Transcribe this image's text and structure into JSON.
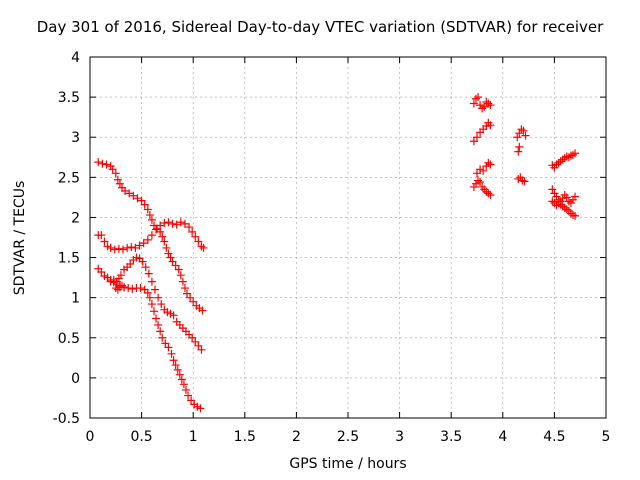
{
  "chart_data": {
    "type": "scatter",
    "title": "Day 301 of 2016, Sidereal Day-to-day VTEC variation (SDTVAR) for receiver",
    "xlabel": "GPS time / hours",
    "ylabel": "SDTVAR / TECUs",
    "xlim": [
      0,
      5
    ],
    "ylim": [
      -0.5,
      4
    ],
    "xticks": [
      "0",
      "0.5",
      "1",
      "1.5",
      "2",
      "2.5",
      "3",
      "3.5",
      "4",
      "4.5",
      "5"
    ],
    "yticks": [
      "-0.5",
      "0",
      "0.5",
      "1",
      "1.5",
      "2",
      "2.5",
      "3",
      "3.5",
      "4"
    ],
    "grid": true,
    "marker": "+",
    "color": "#ff0000",
    "series": [
      {
        "points": [
          [
            0.08,
            2.69
          ],
          [
            0.12,
            2.67
          ],
          [
            0.16,
            2.66
          ],
          [
            0.2,
            2.64
          ],
          [
            0.22,
            2.6
          ],
          [
            0.25,
            2.55
          ],
          [
            0.27,
            2.47
          ],
          [
            0.29,
            2.42
          ],
          [
            0.31,
            2.37
          ],
          [
            0.34,
            2.33
          ],
          [
            0.38,
            2.3
          ],
          [
            0.42,
            2.27
          ],
          [
            0.46,
            2.24
          ],
          [
            0.5,
            2.21
          ],
          [
            0.53,
            2.16
          ],
          [
            0.56,
            2.1
          ],
          [
            0.58,
            2.03
          ],
          [
            0.6,
            1.97
          ],
          [
            0.62,
            1.9
          ],
          [
            0.65,
            1.86
          ],
          [
            0.68,
            1.82
          ],
          [
            0.7,
            1.76
          ],
          [
            0.72,
            1.7
          ],
          [
            0.74,
            1.62
          ],
          [
            0.76,
            1.55
          ],
          [
            0.78,
            1.5
          ],
          [
            0.8,
            1.45
          ],
          [
            0.83,
            1.4
          ],
          [
            0.86,
            1.35
          ],
          [
            0.88,
            1.28
          ],
          [
            0.9,
            1.2
          ],
          [
            0.92,
            1.12
          ],
          [
            0.94,
            1.05
          ],
          [
            0.97,
            1.0
          ],
          [
            1.0,
            0.95
          ],
          [
            1.03,
            0.9
          ],
          [
            1.06,
            0.87
          ],
          [
            1.09,
            0.84
          ],
          [
            0.08,
            1.78
          ],
          [
            0.11,
            1.78
          ],
          [
            0.14,
            1.7
          ],
          [
            0.17,
            1.64
          ],
          [
            0.2,
            1.62
          ],
          [
            0.24,
            1.6
          ],
          [
            0.28,
            1.61
          ],
          [
            0.32,
            1.6
          ],
          [
            0.36,
            1.62
          ],
          [
            0.4,
            1.63
          ],
          [
            0.44,
            1.62
          ],
          [
            0.48,
            1.65
          ],
          [
            0.52,
            1.68
          ],
          [
            0.56,
            1.72
          ],
          [
            0.6,
            1.78
          ],
          [
            0.64,
            1.85
          ],
          [
            0.68,
            1.9
          ],
          [
            0.72,
            1.93
          ],
          [
            0.76,
            1.94
          ],
          [
            0.8,
            1.92
          ],
          [
            0.84,
            1.91
          ],
          [
            0.88,
            1.94
          ],
          [
            0.92,
            1.92
          ],
          [
            0.96,
            1.88
          ],
          [
            0.99,
            1.82
          ],
          [
            1.02,
            1.76
          ],
          [
            1.05,
            1.7
          ],
          [
            1.08,
            1.64
          ],
          [
            1.1,
            1.62
          ],
          [
            0.08,
            1.36
          ],
          [
            0.11,
            1.32
          ],
          [
            0.14,
            1.27
          ],
          [
            0.17,
            1.25
          ],
          [
            0.2,
            1.22
          ],
          [
            0.23,
            1.19
          ],
          [
            0.26,
            1.17
          ],
          [
            0.29,
            1.15
          ],
          [
            0.33,
            1.13
          ],
          [
            0.37,
            1.12
          ],
          [
            0.41,
            1.11
          ],
          [
            0.45,
            1.12
          ],
          [
            0.49,
            1.12
          ],
          [
            0.53,
            1.1
          ],
          [
            0.56,
            1.06
          ],
          [
            0.58,
            1.0
          ],
          [
            0.6,
            0.92
          ],
          [
            0.62,
            0.83
          ],
          [
            0.64,
            0.74
          ],
          [
            0.66,
            0.66
          ],
          [
            0.68,
            0.58
          ],
          [
            0.7,
            0.5
          ],
          [
            0.73,
            0.43
          ],
          [
            0.76,
            0.38
          ],
          [
            0.79,
            0.3
          ],
          [
            0.81,
            0.22
          ],
          [
            0.83,
            0.16
          ],
          [
            0.85,
            0.1
          ],
          [
            0.87,
            0.04
          ],
          [
            0.89,
            -0.02
          ],
          [
            0.91,
            -0.08
          ],
          [
            0.93,
            -0.15
          ],
          [
            0.95,
            -0.22
          ],
          [
            0.98,
            -0.28
          ],
          [
            1.01,
            -0.33
          ],
          [
            1.04,
            -0.36
          ],
          [
            1.07,
            -0.38
          ],
          [
            0.2,
            1.2
          ],
          [
            0.23,
            1.22
          ],
          [
            0.26,
            1.2
          ],
          [
            0.28,
            1.24
          ],
          [
            0.3,
            1.28
          ],
          [
            0.33,
            1.35
          ],
          [
            0.36,
            1.38
          ],
          [
            0.39,
            1.42
          ],
          [
            0.42,
            1.47
          ],
          [
            0.45,
            1.5
          ],
          [
            0.48,
            1.49
          ],
          [
            0.51,
            1.45
          ],
          [
            0.54,
            1.38
          ],
          [
            0.57,
            1.3
          ],
          [
            0.6,
            1.2
          ],
          [
            0.63,
            1.1
          ],
          [
            0.66,
            1.0
          ],
          [
            0.69,
            0.92
          ],
          [
            0.72,
            0.85
          ],
          [
            0.75,
            0.82
          ],
          [
            0.78,
            0.8
          ],
          [
            0.81,
            0.78
          ],
          [
            0.84,
            0.7
          ],
          [
            0.87,
            0.66
          ],
          [
            0.9,
            0.62
          ],
          [
            0.93,
            0.58
          ],
          [
            0.96,
            0.54
          ],
          [
            0.99,
            0.5
          ],
          [
            1.02,
            0.45
          ],
          [
            1.05,
            0.4
          ],
          [
            1.08,
            0.35
          ],
          [
            0.25,
            1.12
          ],
          [
            0.27,
            1.1
          ],
          [
            0.29,
            1.13
          ],
          [
            0.31,
            1.15
          ],
          [
            0.33,
            1.13
          ],
          [
            3.72,
            3.42
          ],
          [
            3.74,
            3.48
          ],
          [
            3.76,
            3.5
          ],
          [
            3.78,
            3.4
          ],
          [
            3.8,
            3.36
          ],
          [
            3.82,
            3.38
          ],
          [
            3.84,
            3.44
          ],
          [
            3.86,
            3.42
          ],
          [
            3.88,
            3.4
          ],
          [
            3.72,
            2.95
          ],
          [
            3.75,
            3.0
          ],
          [
            3.78,
            3.06
          ],
          [
            3.81,
            3.1
          ],
          [
            3.84,
            3.14
          ],
          [
            3.86,
            3.18
          ],
          [
            3.88,
            3.15
          ],
          [
            3.75,
            2.55
          ],
          [
            3.78,
            2.6
          ],
          [
            3.81,
            2.58
          ],
          [
            3.84,
            2.64
          ],
          [
            3.86,
            2.68
          ],
          [
            3.88,
            2.66
          ],
          [
            3.72,
            2.38
          ],
          [
            3.74,
            2.42
          ],
          [
            3.76,
            2.46
          ],
          [
            3.78,
            2.44
          ],
          [
            3.8,
            2.38
          ],
          [
            3.82,
            2.35
          ],
          [
            3.84,
            2.32
          ],
          [
            3.86,
            2.3
          ],
          [
            3.88,
            2.28
          ],
          [
            4.14,
            3.0
          ],
          [
            4.16,
            3.05
          ],
          [
            4.18,
            3.1
          ],
          [
            4.2,
            3.08
          ],
          [
            4.22,
            3.02
          ],
          [
            4.16,
            2.88
          ],
          [
            4.15,
            2.82
          ],
          [
            4.15,
            2.48
          ],
          [
            4.17,
            2.5
          ],
          [
            4.19,
            2.46
          ],
          [
            4.21,
            2.45
          ],
          [
            4.48,
            2.65
          ],
          [
            4.5,
            2.62
          ],
          [
            4.52,
            2.66
          ],
          [
            4.54,
            2.68
          ],
          [
            4.56,
            2.7
          ],
          [
            4.58,
            2.72
          ],
          [
            4.6,
            2.74
          ],
          [
            4.62,
            2.76
          ],
          [
            4.64,
            2.75
          ],
          [
            4.66,
            2.77
          ],
          [
            4.68,
            2.78
          ],
          [
            4.7,
            2.8
          ],
          [
            4.48,
            2.35
          ],
          [
            4.5,
            2.3
          ],
          [
            4.52,
            2.26
          ],
          [
            4.54,
            2.22
          ],
          [
            4.56,
            2.2
          ],
          [
            4.58,
            2.24
          ],
          [
            4.6,
            2.28
          ],
          [
            4.62,
            2.25
          ],
          [
            4.64,
            2.2
          ],
          [
            4.66,
            2.18
          ],
          [
            4.68,
            2.22
          ],
          [
            4.7,
            2.26
          ],
          [
            4.48,
            2.2
          ],
          [
            4.5,
            2.18
          ],
          [
            4.52,
            2.15
          ],
          [
            4.54,
            2.18
          ],
          [
            4.56,
            2.16
          ],
          [
            4.58,
            2.14
          ],
          [
            4.6,
            2.12
          ],
          [
            4.62,
            2.1
          ],
          [
            4.64,
            2.08
          ],
          [
            4.66,
            2.05
          ],
          [
            4.68,
            2.03
          ],
          [
            4.7,
            2.02
          ]
        ]
      }
    ]
  }
}
